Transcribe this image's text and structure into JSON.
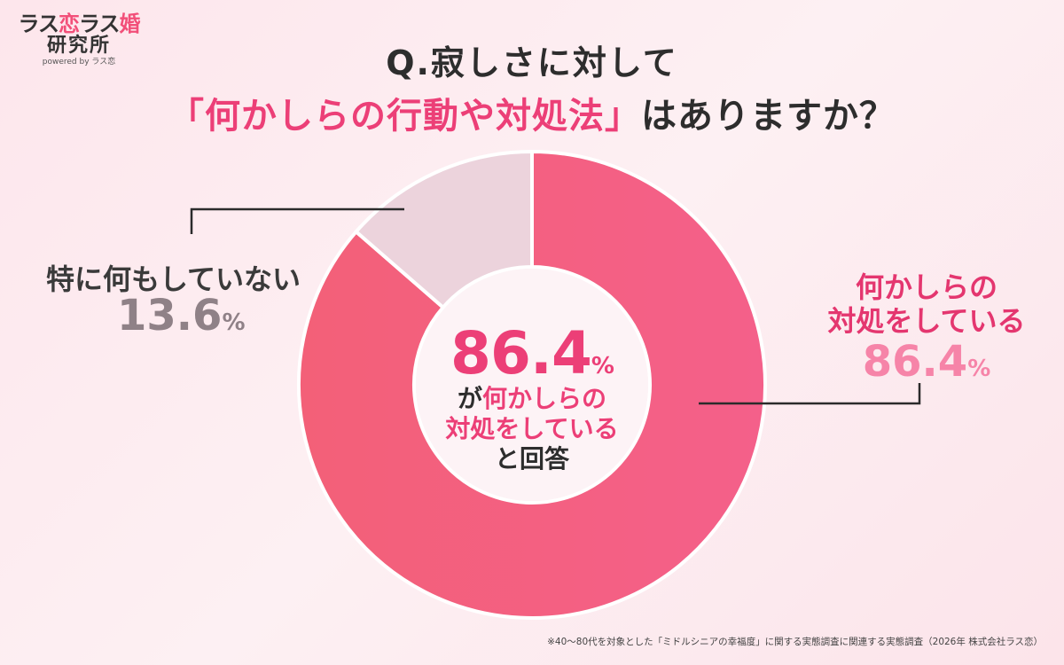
{
  "logo": {
    "part1": "ラス",
    "part2": "恋",
    "part3": "ラス",
    "part4": "婚",
    "line2": "研究所",
    "line3": "powered by ラス恋"
  },
  "title": {
    "line1": "Q.寂しさに対して",
    "line2_highlight": "「何かしらの行動や対処法」",
    "line2_rest": "はありますか？"
  },
  "center": {
    "value": "86.4",
    "value_unit": "%",
    "line1_prefix": "が",
    "line1_highlight": "何かしらの",
    "line2": "対処をしている",
    "line3": "と回答"
  },
  "labels": {
    "left_name": "特に何もしていない",
    "left_value": "13.6",
    "left_unit": "%",
    "right_name_line1": "何かしらの",
    "right_name_line2": "対処をしている",
    "right_value": "86.4",
    "right_unit": "%"
  },
  "footnote": "※40〜80代を対象とした「ミドルシニアの幸福度」に関する実態調査に関連する実態調査（2026年 株式会社ラス恋）",
  "chart_data": {
    "type": "pie",
    "donut": true,
    "categories": [
      "何かしらの対処をしている",
      "特に何もしていない"
    ],
    "values": [
      86.4,
      13.6
    ],
    "unit": "%",
    "colors": [
      "#f25a7f",
      "#ecd3dc"
    ]
  }
}
